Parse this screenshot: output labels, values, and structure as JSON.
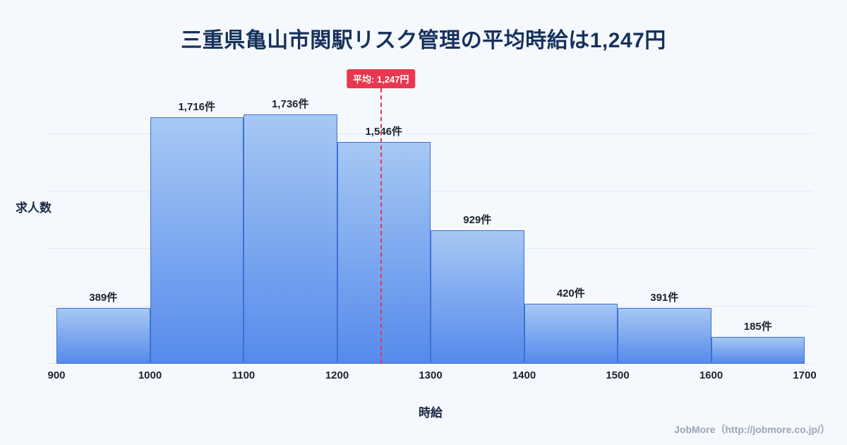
{
  "page": {
    "title": "三重県亀山市関駅リスク管理の平均時給は1,247円",
    "footer": "JobMore（http://jobmore.co.jp/）"
  },
  "chart_data": {
    "type": "bar",
    "title": "三重県亀山市関駅リスク管理の平均時給は1,247円",
    "xlabel": "時給",
    "ylabel": "求人数",
    "x_tick_labels": [
      "900",
      "1000",
      "1100",
      "1200",
      "1300",
      "1400",
      "1500",
      "1600",
      "1700"
    ],
    "bin_edges": [
      900,
      1000,
      1100,
      1200,
      1300,
      1400,
      1500,
      1600,
      1700
    ],
    "values": [
      389,
      1716,
      1736,
      1546,
      929,
      420,
      391,
      185
    ],
    "bar_labels": [
      "389件",
      "1,716件",
      "1,736件",
      "1,546件",
      "929件",
      "420件",
      "391件",
      "185件"
    ],
    "x_range": [
      900,
      1700
    ],
    "ylim": [
      0,
      1800
    ],
    "grid": true,
    "gridline_values": [
      0,
      400,
      800,
      1200,
      1600
    ],
    "average_line": {
      "value": 1247,
      "label": "平均: 1,247円",
      "color": "#e8384f"
    },
    "colors": {
      "bar_top": "#a6c8f3",
      "bar_bottom": "#568aec",
      "bar_border": "#3d6fd6",
      "background": "#f5f8fd",
      "title": "#16325c"
    }
  }
}
